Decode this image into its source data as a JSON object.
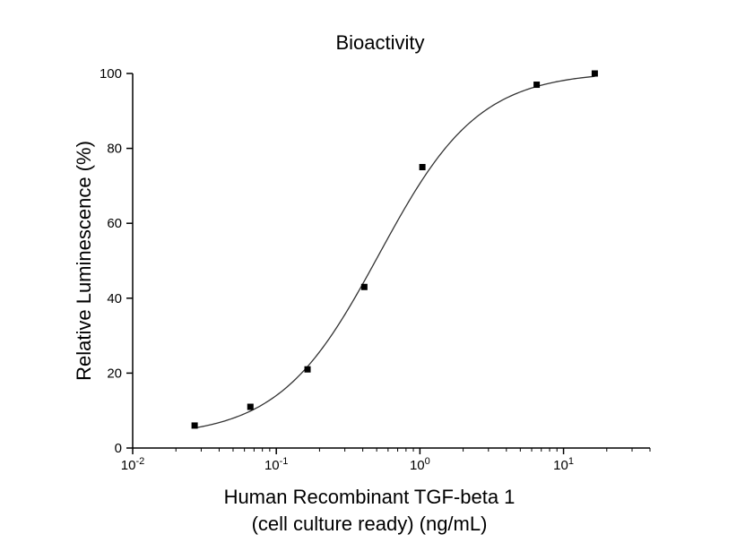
{
  "chart_data": {
    "type": "scatter",
    "title": "Bioactivity",
    "xlabel_lines": [
      "Human Recombinant TGF-beta 1",
      "(cell culture ready) (ng/mL)"
    ],
    "ylabel": "Relative Luminescence (%)",
    "x_scale": "log",
    "xlim": [
      0.01,
      40
    ],
    "ylim": [
      0,
      100
    ],
    "x_ticks": [
      {
        "value": 0.01,
        "base": "10",
        "exp": "-2"
      },
      {
        "value": 0.1,
        "base": "10",
        "exp": "-1"
      },
      {
        "value": 1,
        "base": "10",
        "exp": "0"
      },
      {
        "value": 10,
        "base": "10",
        "exp": "1"
      }
    ],
    "y_ticks": [
      0,
      20,
      40,
      60,
      80,
      100
    ],
    "grid": false,
    "series": [
      {
        "points": [
          {
            "x": 0.027,
            "y": 6
          },
          {
            "x": 0.066,
            "y": 11
          },
          {
            "x": 0.165,
            "y": 21
          },
          {
            "x": 0.41,
            "y": 43
          },
          {
            "x": 1.04,
            "y": 75
          },
          {
            "x": 6.5,
            "y": 97
          },
          {
            "x": 16.5,
            "y": 100
          }
        ]
      }
    ],
    "fit_curve": {
      "model": "4PL",
      "bottom": 3,
      "top": 100.5,
      "ec50": 0.52,
      "hill": 1.25,
      "x_range": [
        0.027,
        16.5
      ]
    }
  }
}
